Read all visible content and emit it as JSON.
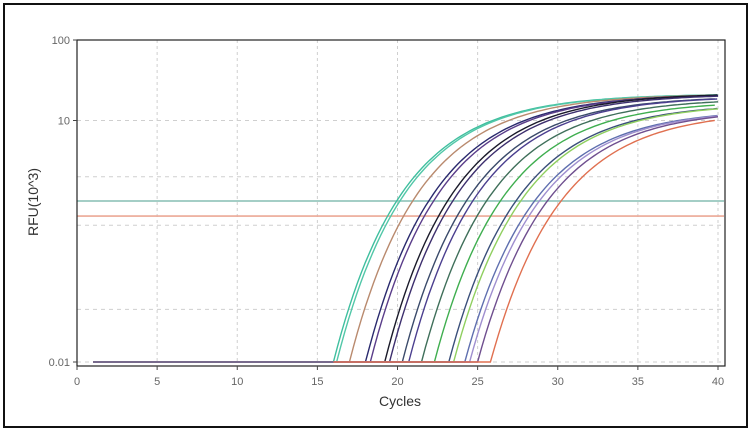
{
  "chart_data": {
    "type": "line",
    "xlabel": "Cycles",
    "ylabel": "RFU(10^3)",
    "xlim": [
      0,
      40
    ],
    "ylim": [
      0.01,
      100
    ],
    "y_scale": "log",
    "x_ticks": [
      0,
      5,
      10,
      15,
      20,
      25,
      30,
      35,
      40
    ],
    "y_ticks": [
      {
        "value": 100,
        "label": "100"
      },
      {
        "value": 10,
        "label": "10"
      },
      {
        "value": 0.01,
        "label": "0.01"
      }
    ],
    "grid": true,
    "grid_style": "dashed",
    "y_gridlines": [
      100,
      10,
      2,
      0.5,
      0.045,
      0.01
    ],
    "baseline_rfu": 0.01,
    "baseline_start_cycle": 1,
    "thresholds": [
      {
        "value": 1.0,
        "color": "#86bdb4"
      },
      {
        "value": 0.65,
        "color": "#eba896"
      }
    ],
    "series": [
      {
        "onset_cycle": 16.0,
        "plateau_rfu": 17,
        "color": "#3fbf9f"
      },
      {
        "onset_cycle": 16.2,
        "plateau_rfu": 17,
        "color": "#52c7a8"
      },
      {
        "onset_cycle": 17.0,
        "plateau_rfu": 17,
        "color": "#b98a6e"
      },
      {
        "onset_cycle": 18.0,
        "plateau_rfu": 17,
        "color": "#2a2a6e"
      },
      {
        "onset_cycle": 18.3,
        "plateau_rfu": 17,
        "color": "#5a3d8a"
      },
      {
        "onset_cycle": 19.2,
        "plateau_rfu": 17.5,
        "color": "#1a1a2a"
      },
      {
        "onset_cycle": 19.5,
        "plateau_rfu": 17,
        "color": "#3d2f6e"
      },
      {
        "onset_cycle": 20.3,
        "plateau_rfu": 16,
        "color": "#3a4a6a"
      },
      {
        "onset_cycle": 20.7,
        "plateau_rfu": 16,
        "color": "#4b3f8f"
      },
      {
        "onset_cycle": 21.5,
        "plateau_rfu": 15,
        "color": "#3f6f5a"
      },
      {
        "onset_cycle": 22.3,
        "plateau_rfu": 14,
        "color": "#3fae4f"
      },
      {
        "onset_cycle": 23.2,
        "plateau_rfu": 13,
        "color": "#3a4f7a"
      },
      {
        "onset_cycle": 23.5,
        "plateau_rfu": 13,
        "color": "#8fcf5f"
      },
      {
        "onset_cycle": 24.2,
        "plateau_rfu": 11,
        "color": "#5f6faf"
      },
      {
        "onset_cycle": 24.5,
        "plateau_rfu": 11,
        "color": "#9f8fcf"
      },
      {
        "onset_cycle": 25.0,
        "plateau_rfu": 11,
        "color": "#6f4f8f"
      },
      {
        "onset_cycle": 25.8,
        "plateau_rfu": 10.5,
        "color": "#e07050"
      }
    ],
    "baseline_color": "#5a6a9a"
  }
}
